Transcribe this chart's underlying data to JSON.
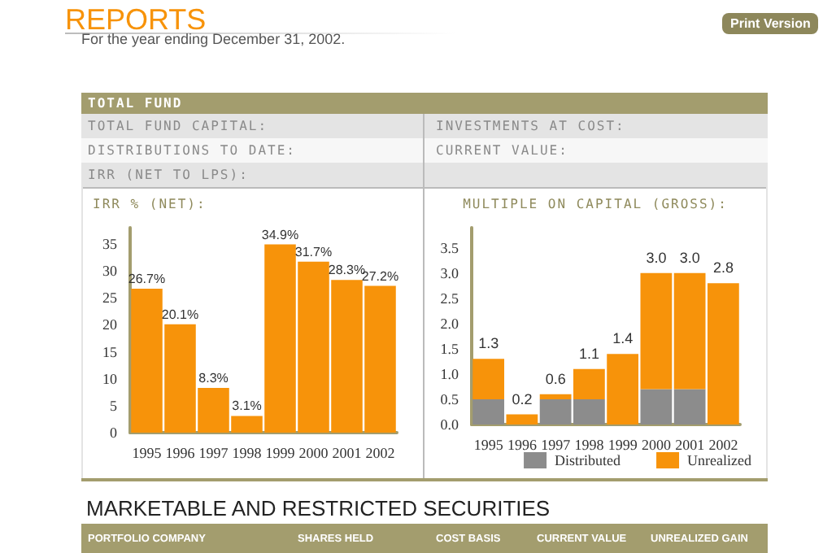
{
  "chart_data": [
    {
      "type": "other",
      "title": "REPORTS",
      "subtitle": "For the year ending December 31, 2002.",
      "annotations": [
        "Print Version",
        "TOTAL FUND",
        "TOTAL FUND CAPITAL:",
        "INVESTMENTS AT COST:",
        "DISTRIBUTIONS TO DATE:",
        "CURRENT VALUE:",
        "IRR (NET TO LPS):",
        "MARKETABLE AND RESTRICTED SECURITIES",
        "PORTFOLIO COMPANY",
        "SHARES HELD",
        "COST BASIS",
        "CURRENT VALUE",
        "UNREALIZED GAIN"
      ]
    },
    {
      "type": "bar",
      "title": "IRR % (NET):",
      "categories": [
        "1995",
        "1996",
        "1997",
        "1998",
        "1999",
        "2000",
        "2001",
        "2002"
      ],
      "values": [
        26.7,
        20.1,
        8.3,
        3.1,
        34.9,
        31.7,
        28.3,
        27.2
      ],
      "value_labels": [
        "26.7%",
        "20.1%",
        "8.3%",
        "3.1%",
        "34.9%",
        "31.7%",
        "28.3%",
        "27.2%"
      ],
      "color": "#f7930a",
      "ylim": [
        0,
        38
      ],
      "yticks": [
        0,
        5,
        10,
        15,
        20,
        25,
        30,
        35
      ]
    },
    {
      "type": "bar",
      "stacked": true,
      "title": "MULTIPLE ON CAPITAL (GROSS):",
      "categories": [
        "1995",
        "1996",
        "1997",
        "1998",
        "1999",
        "2000",
        "2001",
        "2002"
      ],
      "series": [
        {
          "name": "Distributed",
          "color": "#8c8c8c",
          "values": [
            0.5,
            0,
            0.5,
            0.5,
            0,
            0.7,
            0.7,
            0
          ]
        },
        {
          "name": "Unrealized",
          "color": "#f7930a",
          "values": [
            0.8,
            0.2,
            0.1,
            0.6,
            1.4,
            2.3,
            2.3,
            2.8
          ]
        }
      ],
      "totals": [
        "1.3",
        "0.2",
        "0.6",
        "1.1",
        "1.4",
        "3.0",
        "3.0",
        "2.8"
      ],
      "ylim": [
        0,
        3.9
      ],
      "yticks": [
        {
          "value": 0,
          "label": "0.0"
        },
        {
          "value": 0.5,
          "label": "0.5"
        },
        {
          "value": 1,
          "label": "1.0"
        },
        {
          "value": 1.5,
          "label": "1.5"
        },
        {
          "value": 2,
          "label": "2.0"
        },
        {
          "value": 2.5,
          "label": "2.5"
        },
        {
          "value": 3,
          "label": "3.0"
        },
        {
          "value": 3.5,
          "label": "3.5"
        }
      ],
      "legend": "bottom right"
    }
  ]
}
